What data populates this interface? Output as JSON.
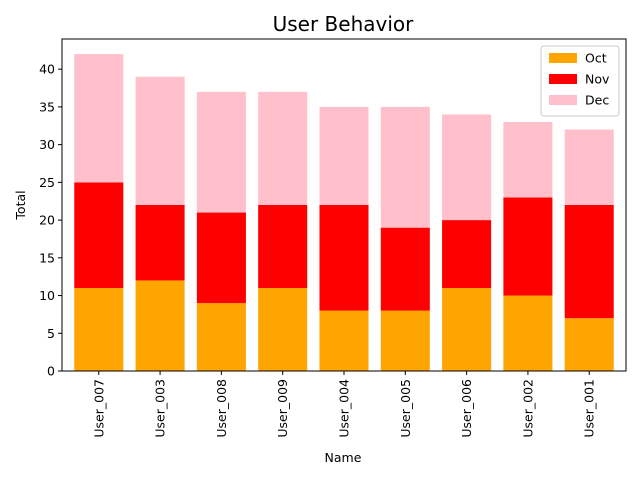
{
  "chart_data": {
    "type": "bar",
    "stacked": true,
    "title": "User Behavior",
    "xlabel": "Name",
    "ylabel": "Total",
    "categories": [
      "User_007",
      "User_003",
      "User_008",
      "User_009",
      "User_004",
      "User_005",
      "User_006",
      "User_002",
      "User_001"
    ],
    "series": [
      {
        "name": "Oct",
        "color": "#ffa500",
        "values": [
          11,
          12,
          9,
          11,
          8,
          8,
          11,
          10,
          7
        ]
      },
      {
        "name": "Nov",
        "color": "#ff0000",
        "values": [
          14,
          10,
          12,
          11,
          14,
          11,
          9,
          13,
          15
        ]
      },
      {
        "name": "Dec",
        "color": "#ffc0cb",
        "values": [
          17,
          17,
          16,
          15,
          13,
          16,
          14,
          10,
          10
        ]
      }
    ],
    "ylim": [
      0,
      44
    ],
    "yticks": [
      0,
      5,
      10,
      15,
      20,
      25,
      30,
      35,
      40
    ],
    "x_tick_rotation": "vertical",
    "grid": false,
    "legend_position": "top-right"
  }
}
